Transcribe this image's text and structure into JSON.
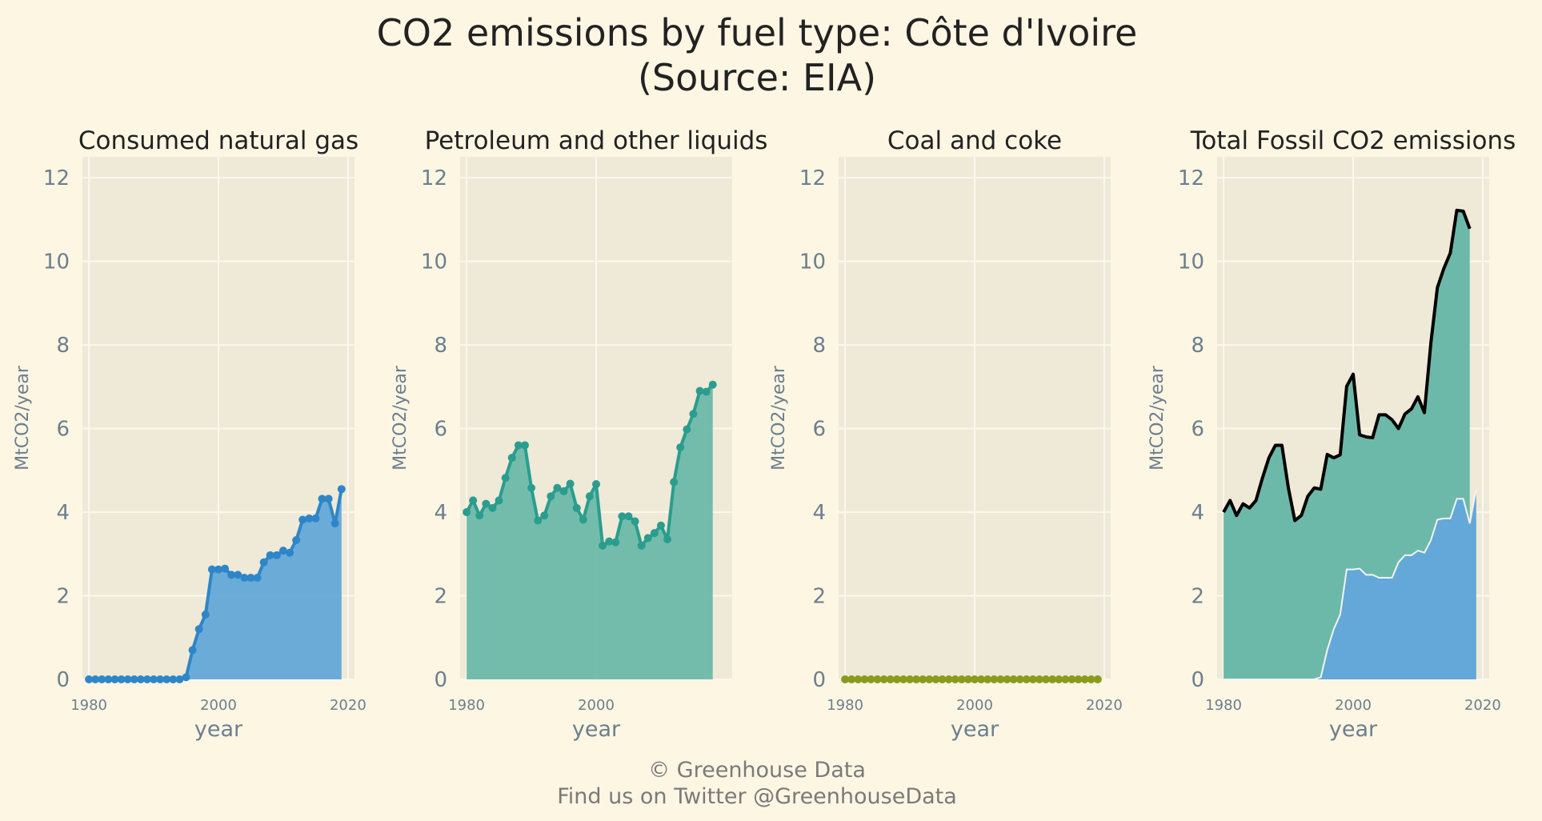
{
  "figure": {
    "title_line1": "CO2 emissions by fuel type: Côte d'Ivoire",
    "title_line2": "(Source: EIA)",
    "footer_line1": "© Greenhouse Data",
    "footer_line2": "Find us on Twitter @GreenhouseData"
  },
  "colors": {
    "background": "#fdf6e3",
    "panel_bg": "#efe9d7",
    "grid": "#fbf8ef",
    "gas": "#2e86c9",
    "gas_fill": "#63a8d8",
    "petroleum": "#2a9d8f",
    "petroleum_fill": "#6cb9a9",
    "coal": "#8a9a1b",
    "total_line": "#000000"
  },
  "chart_data": [
    {
      "type": "area",
      "title": "Consumed natural gas",
      "xlabel": "year",
      "ylabel": "MtCO2/year",
      "xlim": [
        1979,
        2021
      ],
      "ylim": [
        0,
        12.5
      ],
      "xticks": [
        1980,
        2000,
        2020
      ],
      "yticks": [
        0,
        2,
        4,
        6,
        8,
        10,
        12
      ],
      "grid": true,
      "markers": true,
      "x": [
        1980,
        1981,
        1982,
        1983,
        1984,
        1985,
        1986,
        1987,
        1988,
        1989,
        1990,
        1991,
        1992,
        1993,
        1994,
        1995,
        1996,
        1997,
        1998,
        1999,
        2000,
        2001,
        2002,
        2003,
        2004,
        2005,
        2006,
        2007,
        2008,
        2009,
        2010,
        2011,
        2012,
        2013,
        2014,
        2015,
        2016,
        2017,
        2018,
        2019
      ],
      "y": [
        0,
        0,
        0,
        0,
        0,
        0,
        0,
        0,
        0,
        0,
        0,
        0,
        0,
        0,
        0,
        0.05,
        0.7,
        1.2,
        1.55,
        2.63,
        2.63,
        2.65,
        2.5,
        2.5,
        2.43,
        2.43,
        2.43,
        2.8,
        2.97,
        2.97,
        3.08,
        3.03,
        3.33,
        3.82,
        3.85,
        3.85,
        4.32,
        4.32,
        3.73,
        4.55
      ]
    },
    {
      "type": "area",
      "title": "Petroleum and other liquids",
      "xlabel": "year",
      "ylabel": "MtCO2/year",
      "xlim": [
        1979,
        2021
      ],
      "ylim": [
        0,
        12.5
      ],
      "xticks": [
        1980,
        2000
      ],
      "yticks": [
        0,
        2,
        4,
        6,
        8,
        10,
        12
      ],
      "grid": true,
      "markers": true,
      "x": [
        1980,
        1981,
        1982,
        1983,
        1984,
        1985,
        1986,
        1987,
        1988,
        1989,
        1990,
        1991,
        1992,
        1993,
        1994,
        1995,
        1996,
        1997,
        1998,
        1999,
        2000,
        2001,
        2002,
        2003,
        2004,
        2005,
        2006,
        2007,
        2008,
        2009,
        2010,
        2011,
        2012,
        2013,
        2014,
        2015,
        2016,
        2017,
        2018
      ],
      "y": [
        4.0,
        4.28,
        3.92,
        4.2,
        4.1,
        4.28,
        4.82,
        5.3,
        5.6,
        5.6,
        4.58,
        3.8,
        3.92,
        4.38,
        4.58,
        4.5,
        4.68,
        4.1,
        3.82,
        4.38,
        4.67,
        3.2,
        3.3,
        3.28,
        3.9,
        3.9,
        3.78,
        3.2,
        3.38,
        3.5,
        3.68,
        3.35,
        4.72,
        5.55,
        5.98,
        6.35,
        6.9,
        6.88,
        7.05
      ]
    },
    {
      "type": "area",
      "title": "Coal and coke",
      "xlabel": "year",
      "ylabel": "MtCO2/year",
      "xlim": [
        1979,
        2021
      ],
      "ylim": [
        0,
        12.5
      ],
      "xticks": [
        1980,
        2000,
        2020
      ],
      "yticks": [
        0,
        2,
        4,
        6,
        8,
        10,
        12
      ],
      "grid": true,
      "markers": true,
      "x": [
        1980,
        1981,
        1982,
        1983,
        1984,
        1985,
        1986,
        1987,
        1988,
        1989,
        1990,
        1991,
        1992,
        1993,
        1994,
        1995,
        1996,
        1997,
        1998,
        1999,
        2000,
        2001,
        2002,
        2003,
        2004,
        2005,
        2006,
        2007,
        2008,
        2009,
        2010,
        2011,
        2012,
        2013,
        2014,
        2015,
        2016,
        2017,
        2018,
        2019
      ],
      "y": [
        0,
        0,
        0,
        0,
        0,
        0,
        0,
        0,
        0,
        0,
        0,
        0,
        0,
        0,
        0,
        0,
        0,
        0,
        0,
        0,
        0,
        0,
        0,
        0,
        0,
        0,
        0,
        0,
        0,
        0,
        0,
        0,
        0,
        0,
        0,
        0,
        0,
        0,
        0,
        0
      ]
    },
    {
      "type": "area",
      "title": "Total Fossil CO2 emissions",
      "xlabel": "year",
      "ylabel": "MtCO2/year",
      "xlim": [
        1979,
        2021
      ],
      "ylim": [
        0,
        12.5
      ],
      "xticks": [
        1980,
        2000,
        2020
      ],
      "yticks": [
        0,
        2,
        4,
        6,
        8,
        10,
        12
      ],
      "grid": true,
      "markers": false,
      "x": [
        1980,
        1981,
        1982,
        1983,
        1984,
        1985,
        1986,
        1987,
        1988,
        1989,
        1990,
        1991,
        1992,
        1993,
        1994,
        1995,
        1996,
        1997,
        1998,
        1999,
        2000,
        2001,
        2002,
        2003,
        2004,
        2005,
        2006,
        2007,
        2008,
        2009,
        2010,
        2011,
        2012,
        2013,
        2014,
        2015,
        2016,
        2017,
        2018
      ],
      "total": [
        4.0,
        4.28,
        3.92,
        4.2,
        4.1,
        4.28,
        4.82,
        5.3,
        5.6,
        5.6,
        4.58,
        3.8,
        3.92,
        4.38,
        4.58,
        4.55,
        5.38,
        5.3,
        5.37,
        7.01,
        7.3,
        5.85,
        5.8,
        5.78,
        6.33,
        6.33,
        6.21,
        6.0,
        6.35,
        6.47,
        6.76,
        6.38,
        8.05,
        9.37,
        9.83,
        10.2,
        11.22,
        11.2,
        10.78
      ],
      "gas": [
        0,
        0,
        0,
        0,
        0,
        0,
        0,
        0,
        0,
        0,
        0,
        0,
        0,
        0,
        0,
        0.05,
        0.7,
        1.2,
        1.55,
        2.63,
        2.63,
        2.65,
        2.5,
        2.5,
        2.43,
        2.43,
        2.43,
        2.8,
        2.97,
        2.97,
        3.08,
        3.03,
        3.33,
        3.82,
        3.85,
        3.85,
        4.32,
        4.32,
        3.73
      ],
      "gas_last": {
        "x": 2019,
        "y": 4.55
      }
    }
  ]
}
